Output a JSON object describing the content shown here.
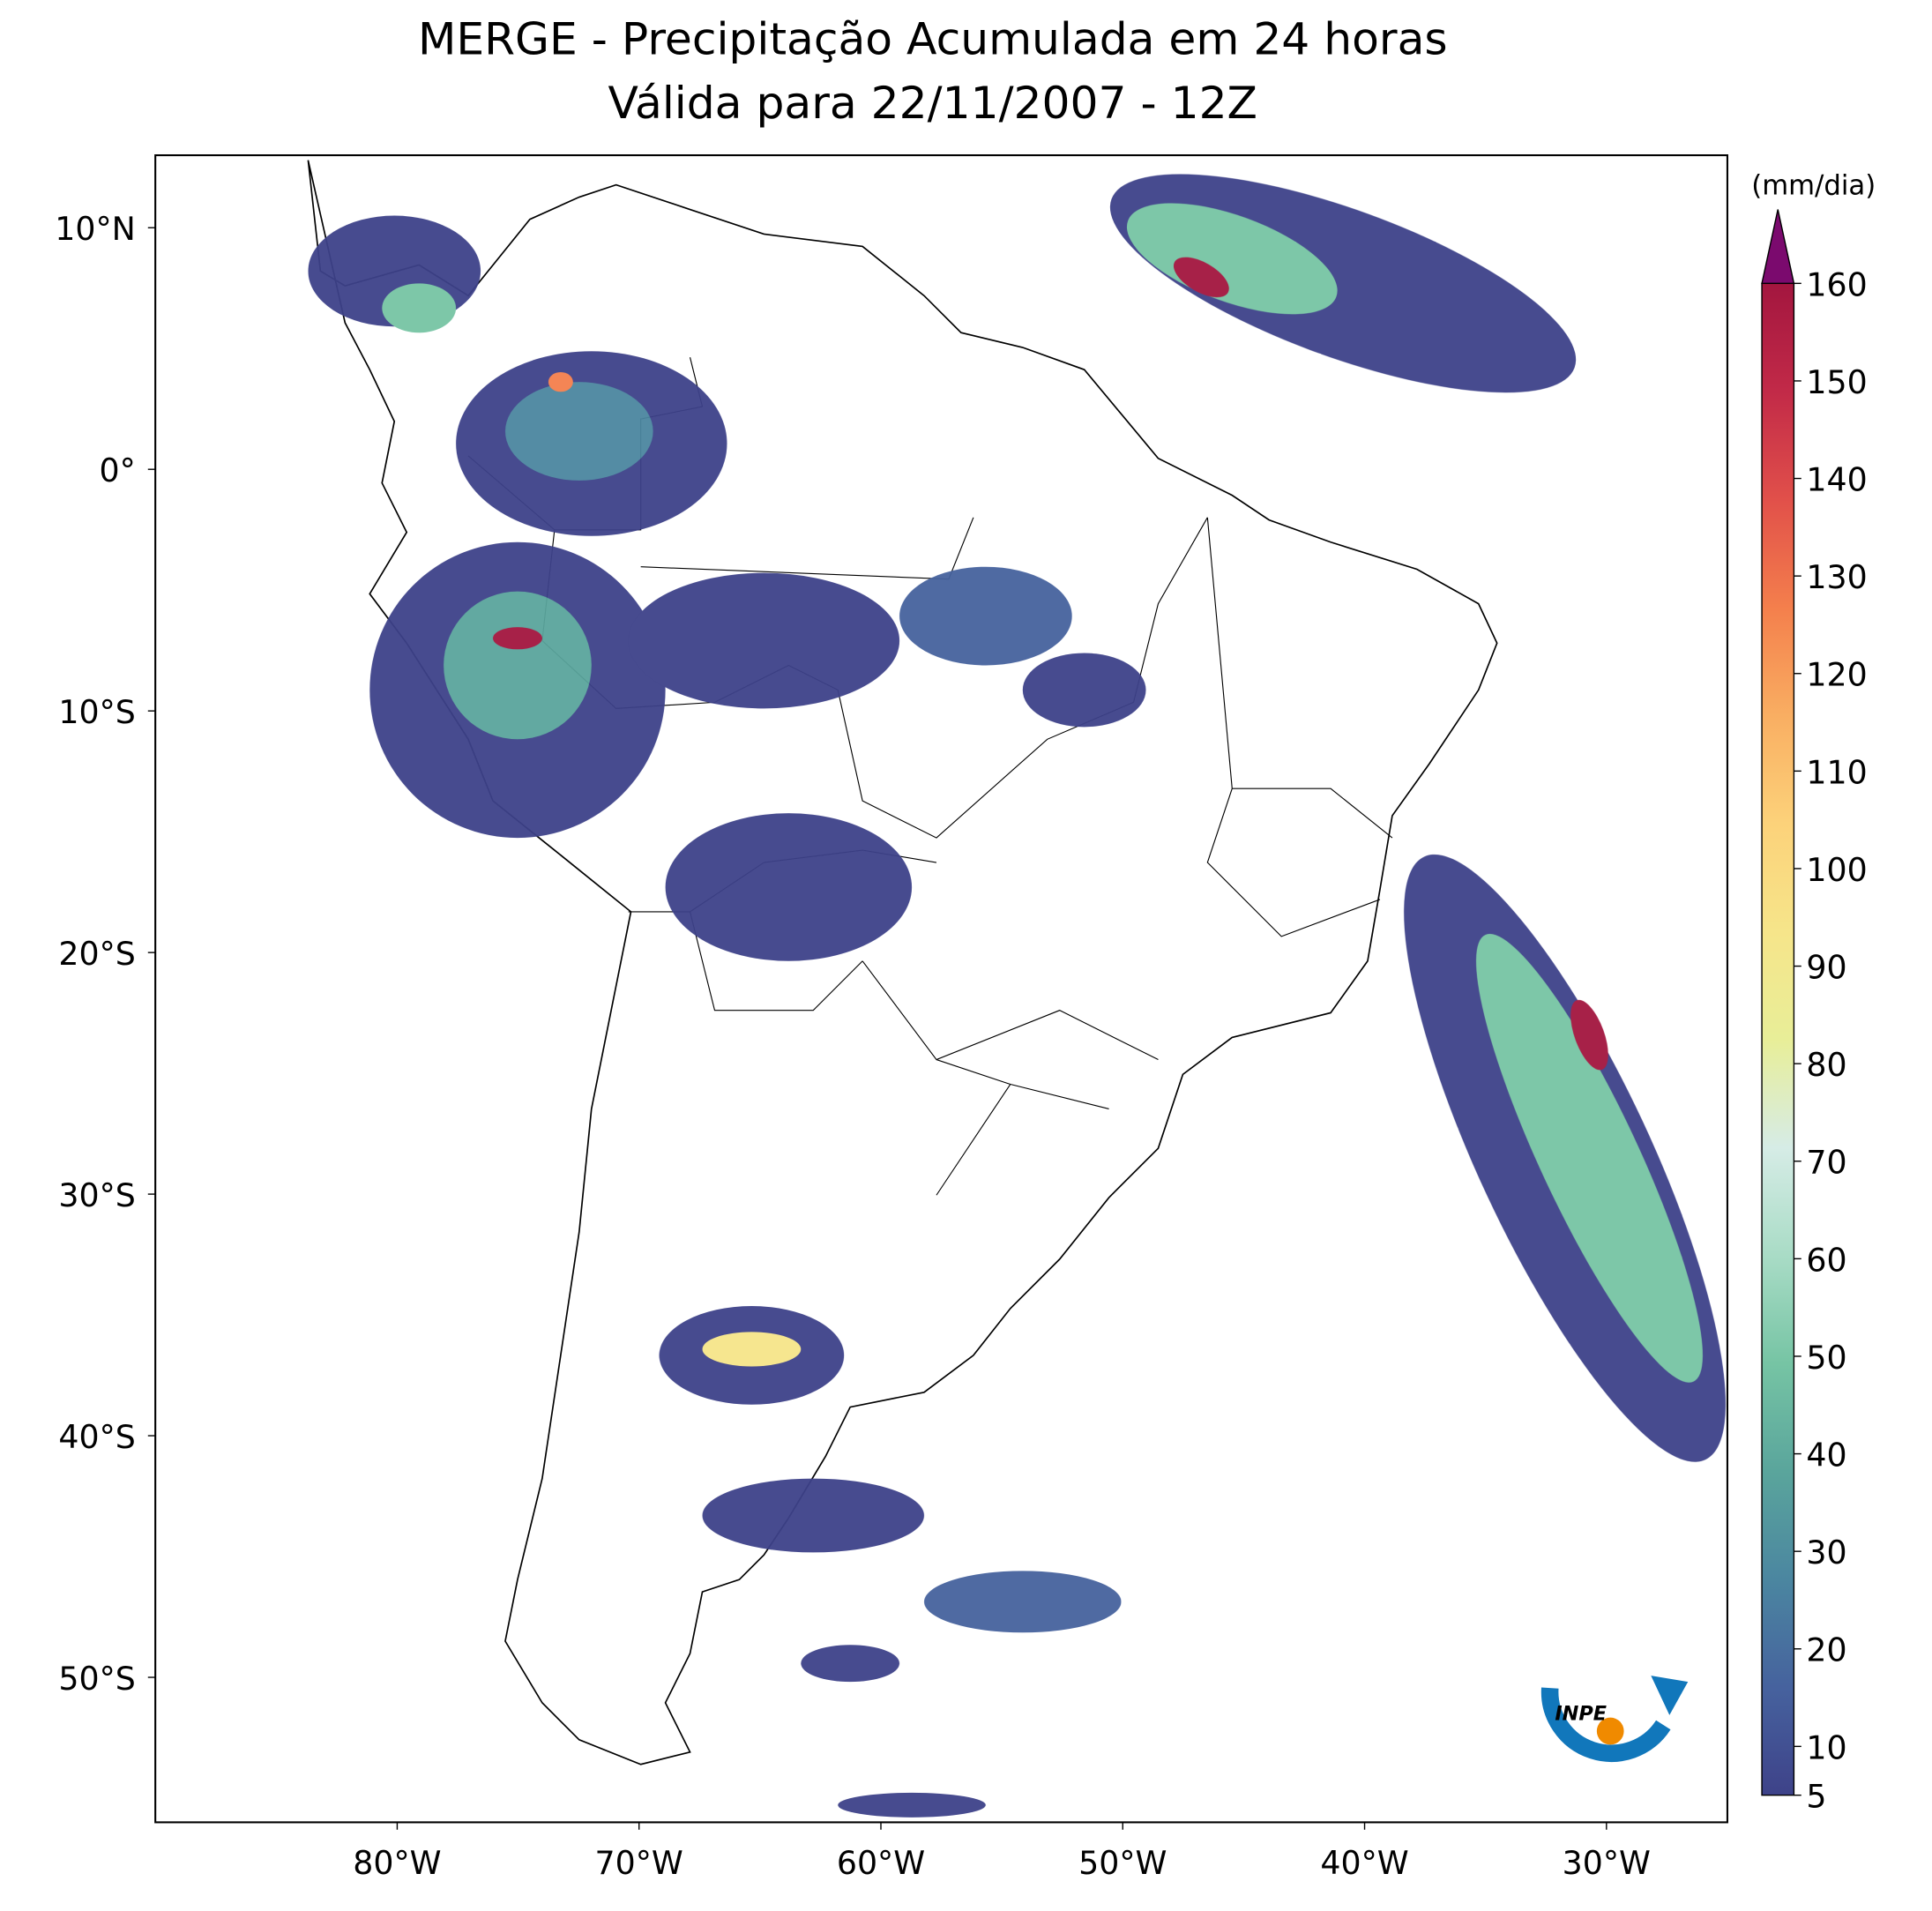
{
  "chart_data": {
    "type": "map",
    "title": "MERGE - Precipitação Acumulada em 24 horas",
    "subtitle": "Válida para 22/11/2007 - 12Z",
    "xlim": [
      -90,
      -25
    ],
    "ylim": [
      -56,
      13
    ],
    "xticks": [
      {
        "value": -80,
        "label": "80°W"
      },
      {
        "value": -70,
        "label": "70°W"
      },
      {
        "value": -60,
        "label": "60°W"
      },
      {
        "value": -50,
        "label": "50°W"
      },
      {
        "value": -40,
        "label": "40°W"
      },
      {
        "value": -30,
        "label": "30°W"
      }
    ],
    "yticks": [
      {
        "value": 10,
        "label": "10°N"
      },
      {
        "value": 0,
        "label": "0°"
      },
      {
        "value": -10,
        "label": "10°S"
      },
      {
        "value": -20,
        "label": "20°S"
      },
      {
        "value": -30,
        "label": "30°S"
      },
      {
        "value": -40,
        "label": "40°S"
      },
      {
        "value": -50,
        "label": "50°S"
      }
    ],
    "colorbar": {
      "label": "(mm/dia)",
      "lim": [
        5,
        160
      ],
      "ticks": [
        5,
        10,
        20,
        30,
        40,
        50,
        60,
        70,
        80,
        90,
        100,
        110,
        120,
        130,
        140,
        150,
        160
      ],
      "colors": [
        "#3e4289",
        "#46629e",
        "#4b86a0",
        "#5aa59c",
        "#76c4a4",
        "#a9dcc6",
        "#d6ece6",
        "#e8ee98",
        "#f6e58a",
        "#fcd27a",
        "#f9ae62",
        "#f47f4c",
        "#e1504a",
        "#c22a48",
        "#a3163f"
      ],
      "extend_color": "#7b0a6e"
    },
    "logo_text": "INPE"
  }
}
